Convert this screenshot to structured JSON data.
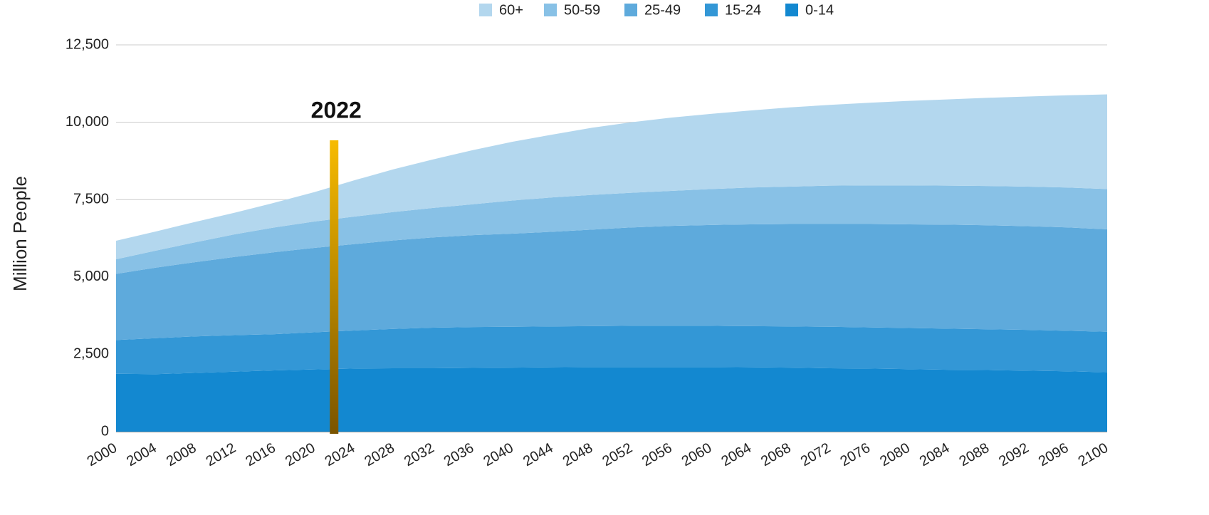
{
  "chart_data": {
    "type": "stacked_area",
    "y_label": "Million People",
    "x": [
      2000,
      2004,
      2008,
      2012,
      2016,
      2020,
      2024,
      2028,
      2032,
      2036,
      2040,
      2044,
      2048,
      2052,
      2056,
      2060,
      2064,
      2068,
      2072,
      2076,
      2080,
      2084,
      2088,
      2092,
      2096,
      2100
    ],
    "xlim": [
      2000,
      2100
    ],
    "xticks": [
      2000,
      2004,
      2008,
      2012,
      2016,
      2020,
      2024,
      2028,
      2032,
      2036,
      2040,
      2044,
      2048,
      2052,
      2056,
      2060,
      2064,
      2068,
      2072,
      2076,
      2080,
      2084,
      2088,
      2092,
      2096,
      2100
    ],
    "ylim": [
      0,
      12500
    ],
    "yticks": [
      0,
      {
        "value": 2500,
        "label": "2,500"
      },
      {
        "value": 5000,
        "label": "5,000"
      },
      {
        "value": 7500,
        "label": "7,500"
      },
      {
        "value": 10000,
        "label": "10,000"
      },
      {
        "value": 12500,
        "label": "12,500"
      }
    ],
    "grid": true,
    "legend": "top",
    "series": [
      {
        "name": "60+",
        "color": "#b3d7ee",
        "values": [
          600,
          620,
          660,
          700,
          800,
          950,
          1170,
          1380,
          1570,
          1750,
          1900,
          2030,
          2170,
          2280,
          2370,
          2430,
          2490,
          2560,
          2610,
          2670,
          2730,
          2790,
          2850,
          2910,
          2980,
          3060
        ]
      },
      {
        "name": "50-59",
        "color": "#88c1e6",
        "values": [
          470,
          550,
          640,
          730,
          800,
          850,
          890,
          920,
          950,
          1000,
          1070,
          1110,
          1120,
          1120,
          1130,
          1160,
          1190,
          1210,
          1240,
          1250,
          1260,
          1260,
          1270,
          1280,
          1290,
          1300
        ]
      },
      {
        "name": "25-49",
        "color": "#5eaadc",
        "values": [
          2140,
          2280,
          2400,
          2530,
          2650,
          2730,
          2790,
          2860,
          2920,
          2970,
          3010,
          3060,
          3120,
          3180,
          3230,
          3260,
          3290,
          3310,
          3320,
          3340,
          3350,
          3360,
          3360,
          3350,
          3340,
          3310
        ]
      },
      {
        "name": "15-24",
        "color": "#3397d6",
        "values": [
          1090,
          1160,
          1180,
          1180,
          1170,
          1200,
          1230,
          1270,
          1310,
          1320,
          1320,
          1320,
          1320,
          1330,
          1330,
          1330,
          1330,
          1330,
          1340,
          1330,
          1330,
          1330,
          1320,
          1320,
          1310,
          1310
        ]
      },
      {
        "name": "0-14",
        "color": "#1388d0",
        "values": [
          1870,
          1860,
          1900,
          1940,
          1980,
          2010,
          2040,
          2050,
          2050,
          2060,
          2070,
          2080,
          2090,
          2090,
          2090,
          2090,
          2080,
          2070,
          2050,
          2040,
          2020,
          2000,
          1990,
          1970,
          1950,
          1920
        ]
      }
    ],
    "annotation": {
      "x": 2022,
      "label": "2022"
    }
  }
}
